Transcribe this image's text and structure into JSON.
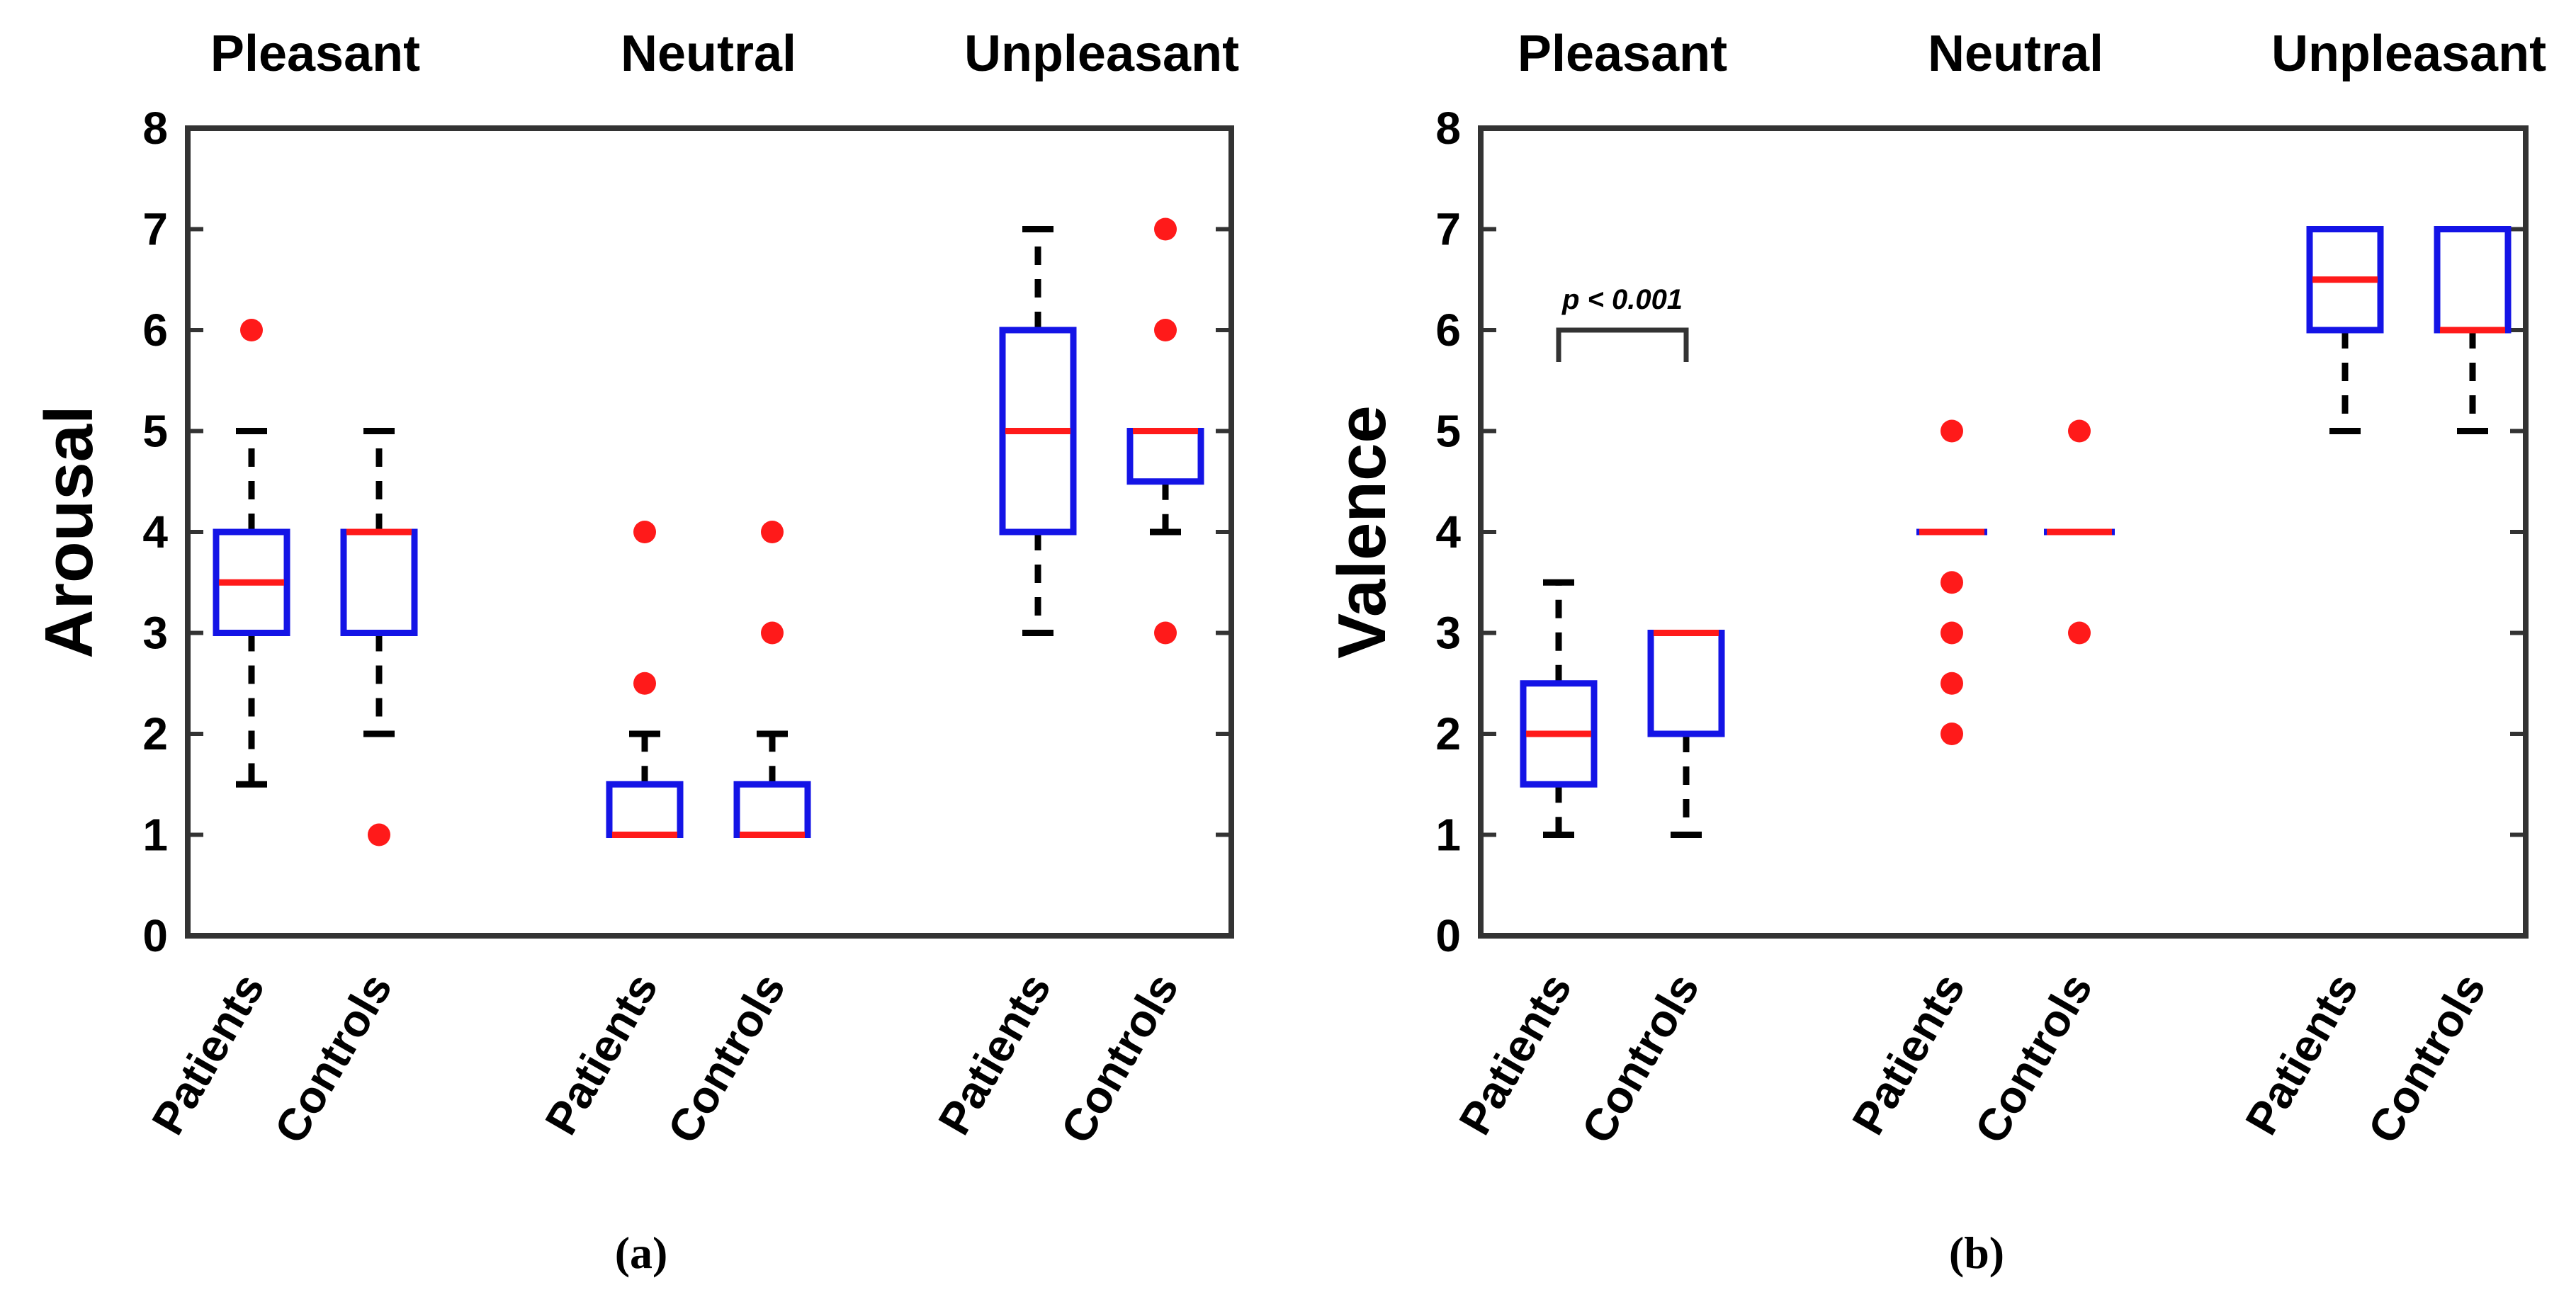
{
  "chart_data": [
    {
      "type": "box",
      "panel_label": "(a)",
      "ylabel": "Arousal",
      "ylim": [
        0,
        8
      ],
      "yticks": [
        "0",
        "1",
        "2",
        "3",
        "4",
        "5",
        "6",
        "7",
        "8"
      ],
      "groups": [
        "Pleasant",
        "Neutral",
        "Unpleasant"
      ],
      "categories": [
        "Patients",
        "Controls"
      ],
      "boxes": [
        {
          "group": "Pleasant",
          "category": "Patients",
          "whisker_low": 1.5,
          "q1": 3,
          "median": 3.5,
          "q3": 4,
          "whisker_high": 5,
          "outliers": [
            6
          ]
        },
        {
          "group": "Pleasant",
          "category": "Controls",
          "whisker_low": 2,
          "q1": 3,
          "median": 4,
          "q3": 4,
          "whisker_high": 5,
          "outliers": [
            1
          ]
        },
        {
          "group": "Neutral",
          "category": "Patients",
          "whisker_low": 1,
          "q1": 1,
          "median": 1,
          "q3": 1.5,
          "whisker_high": 2,
          "outliers": [
            2.5,
            4
          ]
        },
        {
          "group": "Neutral",
          "category": "Controls",
          "whisker_low": 1,
          "q1": 1,
          "median": 1,
          "q3": 1.5,
          "whisker_high": 2,
          "outliers": [
            3,
            4
          ]
        },
        {
          "group": "Unpleasant",
          "category": "Patients",
          "whisker_low": 3,
          "q1": 4,
          "median": 5,
          "q3": 6,
          "whisker_high": 7,
          "outliers": []
        },
        {
          "group": "Unpleasant",
          "category": "Controls",
          "whisker_low": 4,
          "q1": 4.5,
          "median": 5,
          "q3": 5,
          "whisker_high": 5,
          "outliers": [
            3,
            6,
            7
          ]
        }
      ],
      "annotations": []
    },
    {
      "type": "box",
      "panel_label": "(b)",
      "ylabel": "Valence",
      "ylim": [
        0,
        8
      ],
      "yticks": [
        "0",
        "1",
        "2",
        "3",
        "4",
        "5",
        "6",
        "7",
        "8"
      ],
      "groups": [
        "Pleasant",
        "Neutral",
        "Unpleasant"
      ],
      "categories": [
        "Patients",
        "Controls"
      ],
      "boxes": [
        {
          "group": "Pleasant",
          "category": "Patients",
          "whisker_low": 1,
          "q1": 1.5,
          "median": 2,
          "q3": 2.5,
          "whisker_high": 3.5,
          "outliers": []
        },
        {
          "group": "Pleasant",
          "category": "Controls",
          "whisker_low": 1,
          "q1": 2,
          "median": 3,
          "q3": 3,
          "whisker_high": 3,
          "outliers": []
        },
        {
          "group": "Neutral",
          "category": "Patients",
          "whisker_low": 4,
          "q1": 4,
          "median": 4,
          "q3": 4,
          "whisker_high": 4,
          "outliers": [
            2,
            2.5,
            3,
            3.5,
            5
          ]
        },
        {
          "group": "Neutral",
          "category": "Controls",
          "whisker_low": 4,
          "q1": 4,
          "median": 4,
          "q3": 4,
          "whisker_high": 4,
          "outliers": [
            3,
            5
          ]
        },
        {
          "group": "Unpleasant",
          "category": "Patients",
          "whisker_low": 5,
          "q1": 6,
          "median": 6.5,
          "q3": 7,
          "whisker_high": 7,
          "outliers": []
        },
        {
          "group": "Unpleasant",
          "category": "Controls",
          "whisker_low": 5,
          "q1": 6,
          "median": 6,
          "q3": 7,
          "whisker_high": 7,
          "outliers": []
        }
      ],
      "annotations": [
        {
          "text": "p < 0.001",
          "group": "Pleasant",
          "bracket_value": 6
        }
      ]
    }
  ],
  "colors": {
    "box": "#1414e6",
    "median": "#ff1a1a",
    "outlier": "#ff1a1a",
    "whisker": "#000000"
  }
}
